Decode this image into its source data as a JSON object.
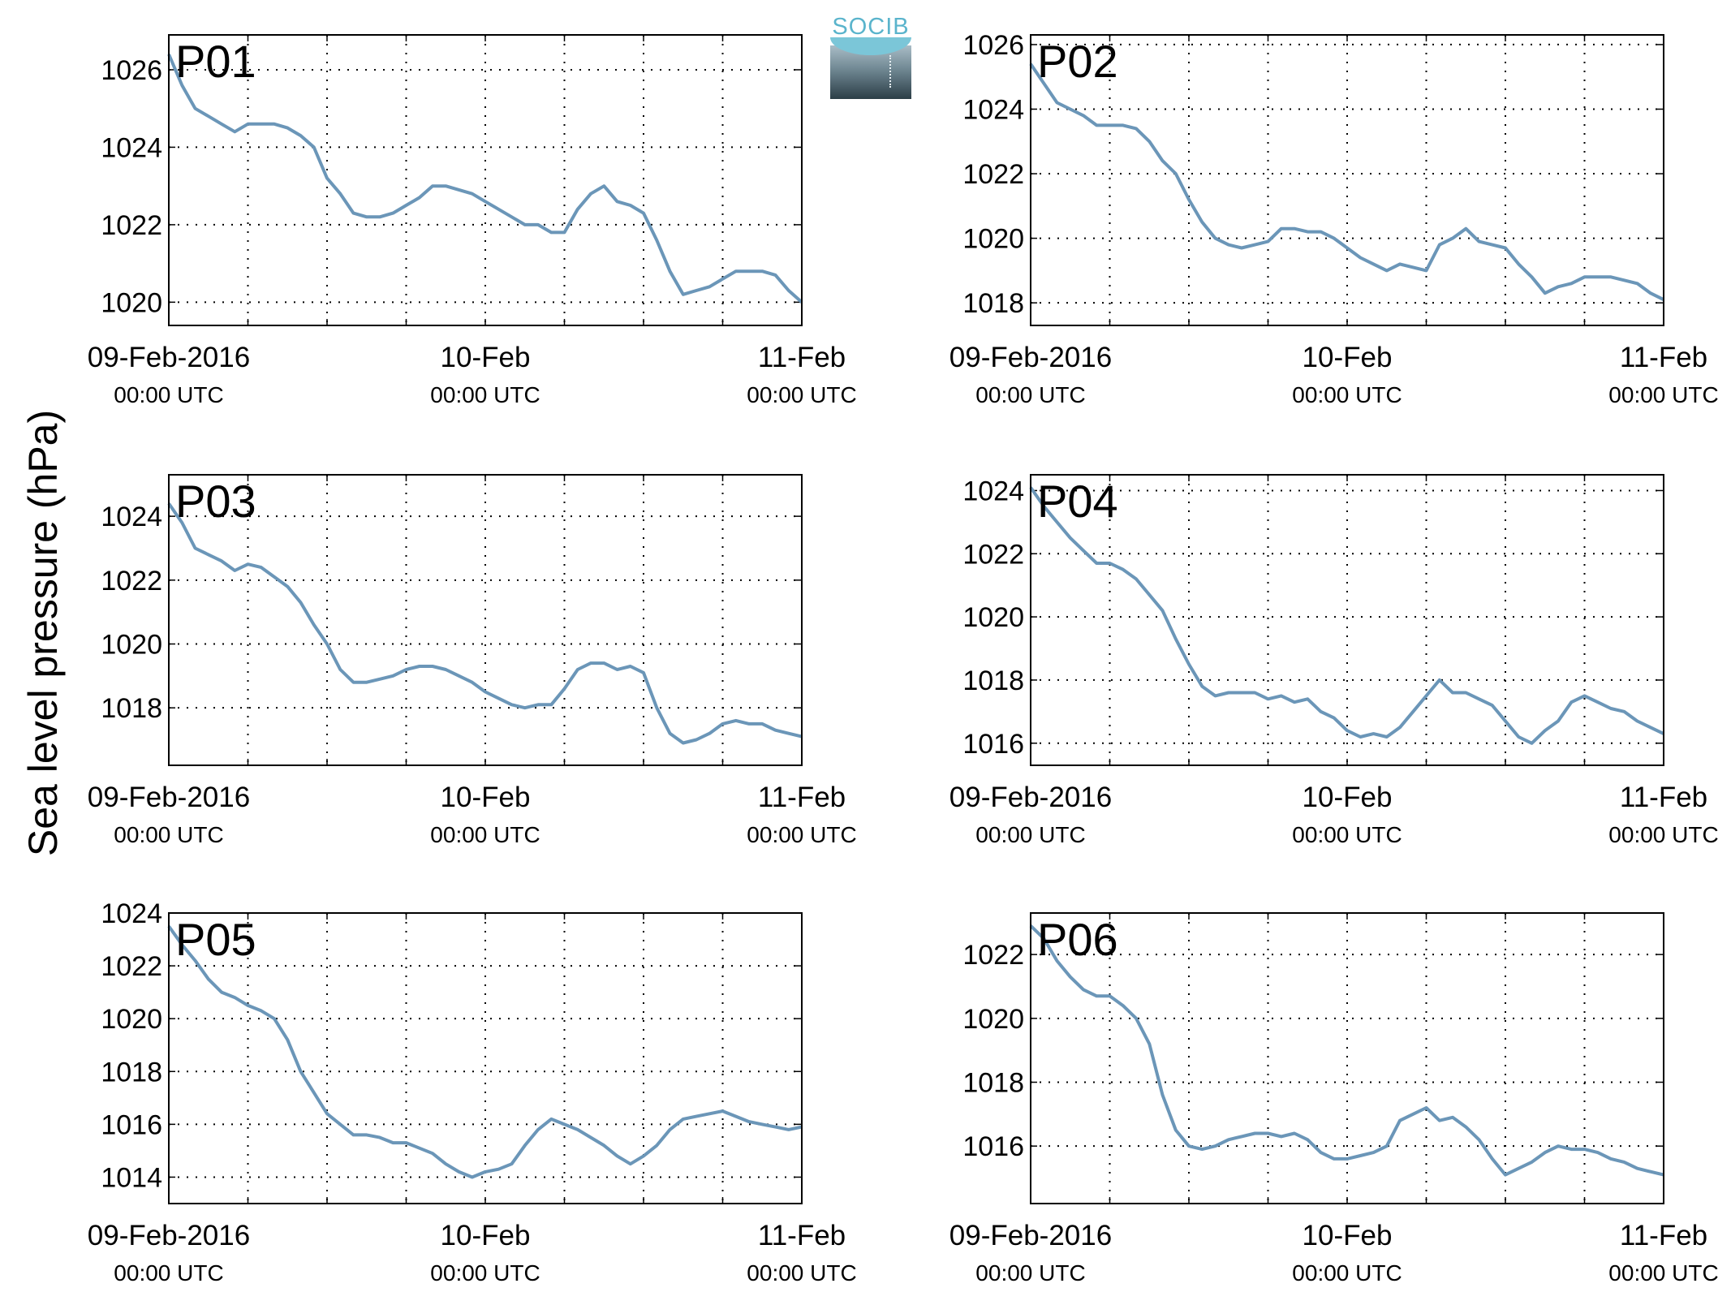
{
  "figure": {
    "ylabel": "Sea level pressure (hPa)",
    "logo_text": "SOCIB",
    "line_color": "#6b96b8",
    "panel_label_color": "#ff0000",
    "x_tick_labels": [
      {
        "top": "09-Feb-2016",
        "bottom": "00:00 UTC"
      },
      {
        "top": "10-Feb",
        "bottom": "00:00 UTC"
      },
      {
        "top": "11-Feb",
        "bottom": "00:00 UTC"
      }
    ]
  },
  "chart_data": [
    {
      "type": "line",
      "label": "P01",
      "xlim": [
        0,
        48
      ],
      "ylim": [
        1019.4,
        1026.9
      ],
      "yticks": [
        1020,
        1022,
        1024,
        1026
      ],
      "xgrid_step_hours": 6,
      "grid": true,
      "x": [
        0,
        1,
        2,
        3,
        4,
        5,
        6,
        7,
        8,
        9,
        10,
        11,
        12,
        13,
        14,
        15,
        16,
        17,
        18,
        19,
        20,
        21,
        22,
        23,
        24,
        25,
        26,
        27,
        28,
        29,
        30,
        31,
        32,
        33,
        34,
        35,
        36,
        37,
        38,
        39,
        40,
        41,
        42,
        43,
        44,
        45,
        46,
        47,
        48
      ],
      "y": [
        1026.4,
        1025.6,
        1025.0,
        1024.8,
        1024.6,
        1024.4,
        1024.6,
        1024.6,
        1024.6,
        1024.5,
        1024.3,
        1024.0,
        1023.2,
        1022.8,
        1022.3,
        1022.2,
        1022.2,
        1022.3,
        1022.5,
        1022.7,
        1023.0,
        1023.0,
        1022.9,
        1022.8,
        1022.6,
        1022.4,
        1022.2,
        1022.0,
        1022.0,
        1021.8,
        1021.8,
        1022.4,
        1022.8,
        1023.0,
        1022.6,
        1022.5,
        1022.3,
        1021.6,
        1020.8,
        1020.2,
        1020.3,
        1020.4,
        1020.6,
        1020.8,
        1020.8,
        1020.8,
        1020.7,
        1020.3,
        1020.0
      ]
    },
    {
      "type": "line",
      "label": "P02",
      "xlim": [
        0,
        48
      ],
      "ylim": [
        1017.3,
        1026.3
      ],
      "yticks": [
        1018,
        1020,
        1022,
        1024,
        1026
      ],
      "xgrid_step_hours": 6,
      "grid": true,
      "x": [
        0,
        1,
        2,
        3,
        4,
        5,
        6,
        7,
        8,
        9,
        10,
        11,
        12,
        13,
        14,
        15,
        16,
        17,
        18,
        19,
        20,
        21,
        22,
        23,
        24,
        25,
        26,
        27,
        28,
        29,
        30,
        31,
        32,
        33,
        34,
        35,
        36,
        37,
        38,
        39,
        40,
        41,
        42,
        43,
        44,
        45,
        46,
        47,
        48
      ],
      "y": [
        1025.4,
        1024.8,
        1024.2,
        1024.0,
        1023.8,
        1023.5,
        1023.5,
        1023.5,
        1023.4,
        1023.0,
        1022.4,
        1022.0,
        1021.2,
        1020.5,
        1020.0,
        1019.8,
        1019.7,
        1019.8,
        1019.9,
        1020.3,
        1020.3,
        1020.2,
        1020.2,
        1020.0,
        1019.7,
        1019.4,
        1019.2,
        1019.0,
        1019.2,
        1019.1,
        1019.0,
        1019.8,
        1020.0,
        1020.3,
        1019.9,
        1019.8,
        1019.7,
        1019.2,
        1018.8,
        1018.3,
        1018.5,
        1018.6,
        1018.8,
        1018.8,
        1018.8,
        1018.7,
        1018.6,
        1018.3,
        1018.1
      ]
    },
    {
      "type": "line",
      "label": "P03",
      "xlim": [
        0,
        48
      ],
      "ylim": [
        1016.2,
        1025.3
      ],
      "yticks": [
        1018,
        1020,
        1022,
        1024
      ],
      "xgrid_step_hours": 6,
      "grid": true,
      "x": [
        0,
        1,
        2,
        3,
        4,
        5,
        6,
        7,
        8,
        9,
        10,
        11,
        12,
        13,
        14,
        15,
        16,
        17,
        18,
        19,
        20,
        21,
        22,
        23,
        24,
        25,
        26,
        27,
        28,
        29,
        30,
        31,
        32,
        33,
        34,
        35,
        36,
        37,
        38,
        39,
        40,
        41,
        42,
        43,
        44,
        45,
        46,
        47,
        48
      ],
      "y": [
        1024.4,
        1023.8,
        1023.0,
        1022.8,
        1022.6,
        1022.3,
        1022.5,
        1022.4,
        1022.1,
        1021.8,
        1021.3,
        1020.6,
        1020.0,
        1019.2,
        1018.8,
        1018.8,
        1018.9,
        1019.0,
        1019.2,
        1019.3,
        1019.3,
        1019.2,
        1019.0,
        1018.8,
        1018.5,
        1018.3,
        1018.1,
        1018.0,
        1018.1,
        1018.1,
        1018.6,
        1019.2,
        1019.4,
        1019.4,
        1019.2,
        1019.3,
        1019.1,
        1018.0,
        1017.2,
        1016.9,
        1017.0,
        1017.2,
        1017.5,
        1017.6,
        1017.5,
        1017.5,
        1017.3,
        1017.2,
        1017.1
      ]
    },
    {
      "type": "line",
      "label": "P04",
      "xlim": [
        0,
        48
      ],
      "ylim": [
        1015.3,
        1024.5
      ],
      "yticks": [
        1016,
        1018,
        1020,
        1022,
        1024
      ],
      "xgrid_step_hours": 6,
      "grid": true,
      "x": [
        0,
        1,
        2,
        3,
        4,
        5,
        6,
        7,
        8,
        9,
        10,
        11,
        12,
        13,
        14,
        15,
        16,
        17,
        18,
        19,
        20,
        21,
        22,
        23,
        24,
        25,
        26,
        27,
        28,
        29,
        30,
        31,
        32,
        33,
        34,
        35,
        36,
        37,
        38,
        39,
        40,
        41,
        42,
        43,
        44,
        45,
        46,
        47,
        48
      ],
      "y": [
        1024.1,
        1023.5,
        1023.0,
        1022.5,
        1022.1,
        1021.7,
        1021.7,
        1021.5,
        1021.2,
        1020.7,
        1020.2,
        1019.3,
        1018.5,
        1017.8,
        1017.5,
        1017.6,
        1017.6,
        1017.6,
        1017.4,
        1017.5,
        1017.3,
        1017.4,
        1017.0,
        1016.8,
        1016.4,
        1016.2,
        1016.3,
        1016.2,
        1016.5,
        1017.0,
        1017.5,
        1018.0,
        1017.6,
        1017.6,
        1017.4,
        1017.2,
        1016.7,
        1016.2,
        1016.0,
        1016.4,
        1016.7,
        1017.3,
        1017.5,
        1017.3,
        1017.1,
        1017.0,
        1016.7,
        1016.5,
        1016.3
      ]
    },
    {
      "type": "line",
      "label": "P05",
      "xlim": [
        0,
        48
      ],
      "ylim": [
        1013.0,
        1024.0
      ],
      "yticks": [
        1014,
        1016,
        1018,
        1020,
        1022,
        1024
      ],
      "xgrid_step_hours": 6,
      "grid": true,
      "x": [
        0,
        1,
        2,
        3,
        4,
        5,
        6,
        7,
        8,
        9,
        10,
        11,
        12,
        13,
        14,
        15,
        16,
        17,
        18,
        19,
        20,
        21,
        22,
        23,
        24,
        25,
        26,
        27,
        28,
        29,
        30,
        31,
        32,
        33,
        34,
        35,
        36,
        37,
        38,
        39,
        40,
        41,
        42,
        43,
        44,
        45,
        46,
        47,
        48
      ],
      "y": [
        1023.5,
        1022.8,
        1022.2,
        1021.5,
        1021.0,
        1020.8,
        1020.5,
        1020.3,
        1020.0,
        1019.2,
        1018.0,
        1017.2,
        1016.4,
        1016.0,
        1015.6,
        1015.6,
        1015.5,
        1015.3,
        1015.3,
        1015.1,
        1014.9,
        1014.5,
        1014.2,
        1014.0,
        1014.2,
        1014.3,
        1014.5,
        1015.2,
        1015.8,
        1016.2,
        1016.0,
        1015.8,
        1015.5,
        1015.2,
        1014.8,
        1014.5,
        1014.8,
        1015.2,
        1015.8,
        1016.2,
        1016.3,
        1016.4,
        1016.5,
        1016.3,
        1016.1,
        1016.0,
        1015.9,
        1015.8,
        1015.9
      ]
    },
    {
      "type": "line",
      "label": "P06",
      "xlim": [
        0,
        48
      ],
      "ylim": [
        1014.2,
        1023.3
      ],
      "yticks": [
        1016,
        1018,
        1020,
        1022
      ],
      "xgrid_step_hours": 6,
      "grid": true,
      "x": [
        0,
        1,
        2,
        3,
        4,
        5,
        6,
        7,
        8,
        9,
        10,
        11,
        12,
        13,
        14,
        15,
        16,
        17,
        18,
        19,
        20,
        21,
        22,
        23,
        24,
        25,
        26,
        27,
        28,
        29,
        30,
        31,
        32,
        33,
        34,
        35,
        36,
        37,
        38,
        39,
        40,
        41,
        42,
        43,
        44,
        45,
        46,
        47,
        48
      ],
      "y": [
        1022.9,
        1022.5,
        1021.8,
        1021.3,
        1020.9,
        1020.7,
        1020.7,
        1020.4,
        1020.0,
        1019.2,
        1017.6,
        1016.5,
        1016.0,
        1015.9,
        1016.0,
        1016.2,
        1016.3,
        1016.4,
        1016.4,
        1016.3,
        1016.4,
        1016.2,
        1015.8,
        1015.6,
        1015.6,
        1015.7,
        1015.8,
        1016.0,
        1016.8,
        1017.0,
        1017.2,
        1016.8,
        1016.9,
        1016.6,
        1016.2,
        1015.6,
        1015.1,
        1015.3,
        1015.5,
        1015.8,
        1016.0,
        1015.9,
        1015.9,
        1015.8,
        1015.6,
        1015.5,
        1015.3,
        1015.2,
        1015.1
      ]
    }
  ]
}
